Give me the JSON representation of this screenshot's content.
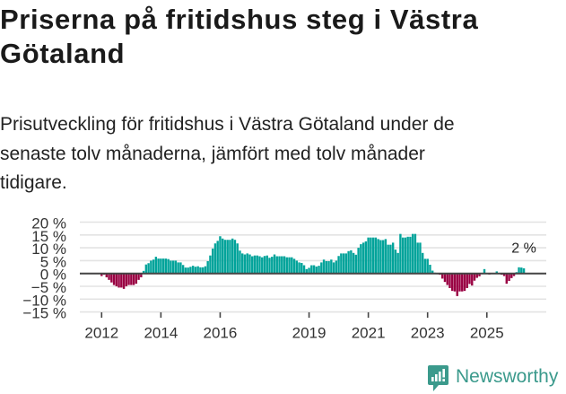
{
  "title": "Priserna på fritidshus steg i Västra Götaland",
  "subtitle": "Prisutveckling för fritidshus i Västra Götaland under de senaste tolv månaderna, jämfört med tolv månader tidigare.",
  "branding": {
    "name": "Newsworthy",
    "icon": "bar-chart-speech-bubble-icon",
    "color": "#3b9a8c"
  },
  "colors": {
    "positive": "#00a39a",
    "negative": "#990042",
    "zero_line": "#444444",
    "grid": "#e3e3e3",
    "axis_text": "#333333"
  },
  "chart_data": {
    "type": "bar",
    "title": "Priserna på fritidshus steg i Västra Götaland",
    "subtitle": "Prisutveckling för fritidshus i Västra Götaland under de senaste tolv månaderna, jämfört med tolv månader tidigare.",
    "xlabel": "",
    "ylabel": "",
    "frequency": "monthly",
    "x_start": "2012-01",
    "x_tick_labels": [
      "2012",
      "2014",
      "2016",
      "2019",
      "2021",
      "2023",
      "2025"
    ],
    "x_tick_index": [
      0,
      24,
      48,
      84,
      108,
      132,
      156
    ],
    "y_ticks": [
      20,
      15,
      10,
      5,
      0,
      -5,
      -10,
      -15
    ],
    "y_tick_labels": [
      "20 %",
      "15 %",
      "10 %",
      "5 %",
      "0 %",
      "−5 %",
      "−10 %",
      "−15 %"
    ],
    "ylim": [
      -15,
      20
    ],
    "grid": true,
    "legend": null,
    "annotation": {
      "label": "2 %",
      "index": 171
    },
    "values": [
      -1,
      -0.5,
      -1.5,
      -2.5,
      -3.5,
      -4.5,
      -5,
      -5.5,
      -5.5,
      -6,
      -5,
      -4.5,
      -4.5,
      -4.5,
      -4,
      -2.5,
      -1.5,
      1,
      3.5,
      4,
      5,
      5.4,
      6.5,
      5.8,
      5.8,
      5.8,
      5.8,
      5.6,
      5,
      5,
      5,
      4.3,
      4.3,
      3.3,
      2.3,
      2.3,
      2.6,
      3,
      2.6,
      2.8,
      2.4,
      2.4,
      2.8,
      4.8,
      7,
      9.7,
      11.7,
      12.7,
      14.5,
      13.6,
      13.1,
      13.1,
      13.1,
      13.6,
      13.1,
      11.7,
      8.9,
      7.8,
      7.4,
      7.8,
      7.4,
      6.7,
      7,
      7,
      6.7,
      6.3,
      6.8,
      7,
      6.1,
      6.5,
      7.4,
      6.7,
      6.7,
      6.7,
      6.7,
      6.3,
      6.3,
      6.3,
      5.7,
      5,
      4.3,
      4.1,
      3.2,
      1.7,
      2.2,
      3.2,
      3.2,
      2.7,
      3,
      4.3,
      5.4,
      4.8,
      4.8,
      5.4,
      4.3,
      5,
      6.8,
      7.8,
      7.8,
      7.8,
      8.7,
      9,
      8,
      7.3,
      10,
      11.4,
      12,
      12.5,
      14,
      14,
      14,
      14,
      13.4,
      13,
      13,
      13.4,
      11.2,
      11.2,
      12,
      9.3,
      8,
      15.4,
      14,
      14,
      14.3,
      14.3,
      15.4,
      15.4,
      12,
      12,
      8,
      5.7,
      5.7,
      3.4,
      1.1,
      0.3,
      -0.3,
      -0.5,
      -2,
      -3.3,
      -4.5,
      -5.7,
      -6.8,
      -7,
      -8.8,
      -7,
      -7,
      -6.8,
      -5.7,
      -4.1,
      -4.7,
      -2.8,
      -1.7,
      -1.1,
      -0.3,
      1.7,
      0.2,
      -0.4,
      0.1,
      0.2,
      0.8,
      0.1,
      -0.5,
      -1,
      -4,
      -2.9,
      -1.8,
      -1,
      0.5,
      2.4,
      2.3,
      2
    ]
  }
}
